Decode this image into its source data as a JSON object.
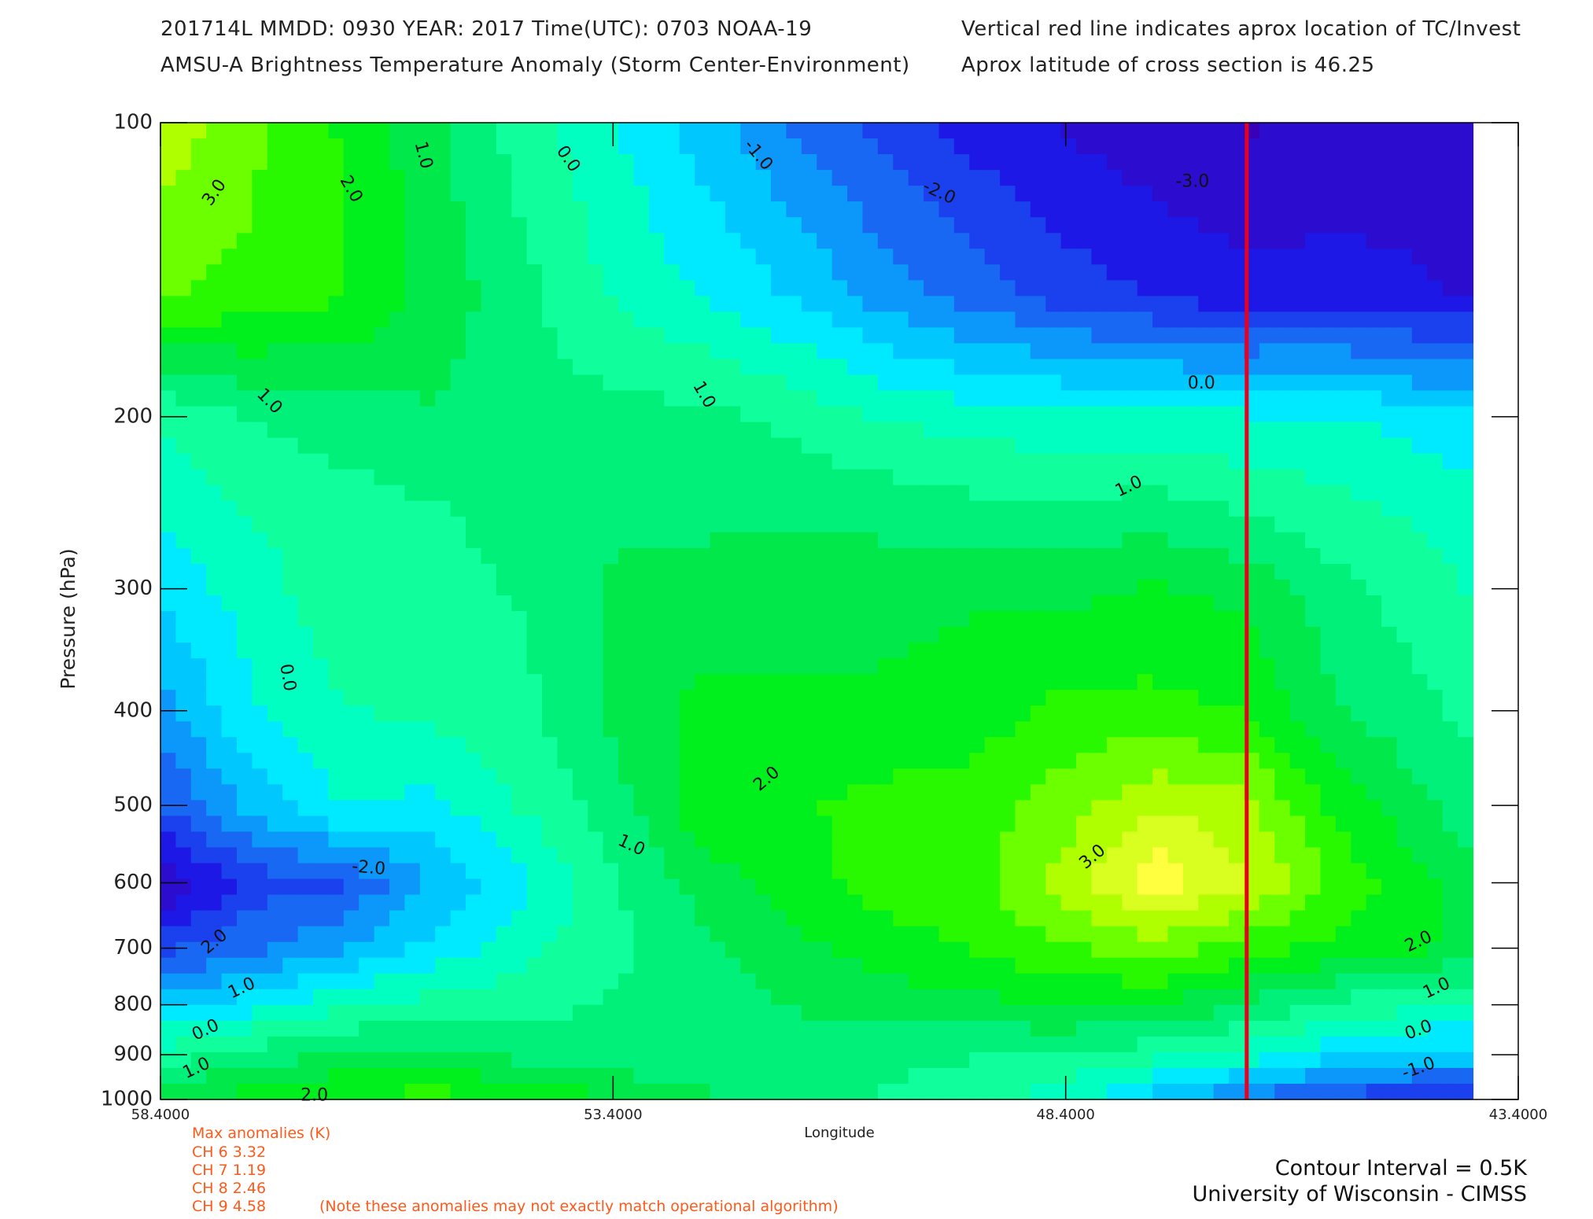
{
  "header": {
    "line1_left": "201714L  MMDD: 0930 YEAR: 2017 Time(UTC): 0703 NOAA-19",
    "line2_left": "AMSU-A Brightness Temperature Anomaly (Storm Center-Environment)",
    "line1_right": "Vertical red line indicates aprox location of TC/Invest",
    "line2_right": "Aprox latitude of cross section is 46.25"
  },
  "chart_data": {
    "type": "contour",
    "xlabel": "Longitude",
    "ylabel": "Pressure (hPa)",
    "x_range": [
      58.4,
      43.4
    ],
    "x_ticks": [
      58.4,
      53.4,
      48.4,
      43.4
    ],
    "x_tick_labels": [
      "58.4000",
      "53.4000",
      "48.4000",
      "43.4000"
    ],
    "y_ticks": [
      100,
      200,
      300,
      400,
      500,
      600,
      700,
      800,
      900,
      1000
    ],
    "y_scale": "log",
    "y_range": [
      100,
      1000
    ],
    "data_extent_lon": [
      58.4,
      43.9
    ],
    "contour_interval": 0.5,
    "tc_longitude": 46.4,
    "tc_line_color": "#e8001c",
    "color_scale": [
      {
        "v": -4.0,
        "c": "#3a00b8"
      },
      {
        "v": -3.0,
        "c": "#1d18e6"
      },
      {
        "v": -2.0,
        "c": "#1868f4"
      },
      {
        "v": -1.0,
        "c": "#00c8ff"
      },
      {
        "v": -0.5,
        "c": "#00eaff"
      },
      {
        "v": 0.0,
        "c": "#00ffc0"
      },
      {
        "v": 0.5,
        "c": "#10ff9c"
      },
      {
        "v": 1.0,
        "c": "#00f07a"
      },
      {
        "v": 1.5,
        "c": "#00e84a"
      },
      {
        "v": 2.0,
        "c": "#00f01e"
      },
      {
        "v": 2.5,
        "c": "#28f800"
      },
      {
        "v": 3.0,
        "c": "#6cff00"
      },
      {
        "v": 3.5,
        "c": "#b0ff00"
      },
      {
        "v": 4.5,
        "c": "#ffff40"
      }
    ],
    "grid": {
      "longitudes": [
        58.4,
        57.4,
        56.4,
        55.4,
        54.4,
        53.4,
        52.4,
        51.4,
        50.4,
        49.4,
        48.4,
        47.4,
        46.4,
        45.4,
        43.9
      ],
      "pressures": [
        100,
        150,
        200,
        250,
        300,
        400,
        500,
        600,
        700,
        800,
        900,
        1000
      ],
      "values": [
        [
          3.6,
          2.9,
          2.2,
          1.4,
          0.5,
          -0.2,
          -1.0,
          -1.8,
          -2.4,
          -3.0,
          -3.3,
          -3.6,
          -3.8,
          -3.7,
          -3.5
        ],
        [
          2.8,
          2.6,
          2.3,
          1.6,
          0.9,
          0.2,
          -0.3,
          -0.8,
          -1.5,
          -2.0,
          -2.5,
          -2.8,
          -3.1,
          -3.0,
          -3.3
        ],
        [
          0.3,
          0.8,
          1.0,
          1.2,
          1.0,
          0.9,
          0.9,
          0.6,
          0.2,
          0.0,
          -0.1,
          -0.1,
          -0.2,
          -0.2,
          -0.7
        ],
        [
          -0.2,
          0.3,
          0.5,
          0.7,
          0.9,
          1.2,
          1.1,
          1.1,
          1.1,
          0.9,
          0.9,
          1.0,
          0.7,
          0.4,
          0.0
        ],
        [
          -0.6,
          0.0,
          0.6,
          0.6,
          0.8,
          1.3,
          1.5,
          1.6,
          1.5,
          1.7,
          1.6,
          1.8,
          1.6,
          0.9,
          0.2
        ],
        [
          -1.5,
          -0.3,
          0.2,
          0.4,
          0.6,
          1.4,
          1.9,
          1.8,
          1.9,
          2.0,
          2.4,
          2.4,
          2.2,
          1.3,
          0.6
        ],
        [
          -2.3,
          -1.1,
          -0.2,
          -0.4,
          0.3,
          1.0,
          2.1,
          2.2,
          2.4,
          2.5,
          3.0,
          3.7,
          3.4,
          2.1,
          0.9
        ],
        [
          -3.8,
          -2.5,
          -2.3,
          -1.2,
          -0.4,
          0.7,
          1.5,
          2.0,
          2.5,
          2.6,
          3.5,
          4.6,
          3.8,
          2.6,
          1.5
        ],
        [
          -2.4,
          -1.9,
          -1.3,
          -0.6,
          0.1,
          0.6,
          1.1,
          1.6,
          2.0,
          2.3,
          2.7,
          3.0,
          2.5,
          2.1,
          1.6
        ],
        [
          -1.0,
          -0.5,
          0.2,
          0.4,
          0.6,
          0.8,
          1.0,
          1.3,
          1.5,
          1.6,
          1.8,
          1.8,
          1.2,
          0.6,
          0.2
        ],
        [
          0.5,
          1.0,
          1.3,
          1.4,
          1.1,
          0.9,
          0.8,
          0.9,
          0.9,
          0.8,
          0.7,
          0.4,
          0.0,
          -0.6,
          -1.0
        ],
        [
          1.5,
          2.0,
          2.3,
          2.5,
          2.2,
          1.8,
          1.4,
          1.0,
          0.7,
          0.4,
          0.0,
          -1.0,
          -1.8,
          -2.5,
          -3.0
        ]
      ]
    },
    "contour_labels": [
      {
        "text": "3.0",
        "lon": 57.8,
        "p": 118,
        "angle": -55
      },
      {
        "text": "2.0",
        "lon": 56.3,
        "p": 117,
        "angle": 60
      },
      {
        "text": "1.0",
        "lon": 55.5,
        "p": 108,
        "angle": 75
      },
      {
        "text": "0.0",
        "lon": 53.9,
        "p": 109,
        "angle": 55
      },
      {
        "text": "-1.0",
        "lon": 51.8,
        "p": 108,
        "angle": 50
      },
      {
        "text": "-2.0",
        "lon": 49.8,
        "p": 118,
        "angle": 25
      },
      {
        "text": "-3.0",
        "lon": 47.0,
        "p": 115,
        "angle": 0
      },
      {
        "text": "0.0",
        "lon": 46.9,
        "p": 185,
        "angle": 0
      },
      {
        "text": "1.0",
        "lon": 47.7,
        "p": 236,
        "angle": -25
      },
      {
        "text": "1.0",
        "lon": 57.2,
        "p": 193,
        "angle": 45
      },
      {
        "text": "1.0",
        "lon": 52.4,
        "p": 190,
        "angle": 60
      },
      {
        "text": "0.0",
        "lon": 57.0,
        "p": 370,
        "angle": 80
      },
      {
        "text": "2.0",
        "lon": 51.7,
        "p": 470,
        "angle": -40
      },
      {
        "text": "1.0",
        "lon": 53.2,
        "p": 550,
        "angle": 25
      },
      {
        "text": "-2.0",
        "lon": 56.1,
        "p": 580,
        "angle": 5
      },
      {
        "text": "3.0",
        "lon": 48.1,
        "p": 565,
        "angle": -40
      },
      {
        "text": "2.0",
        "lon": 57.8,
        "p": 690,
        "angle": -40
      },
      {
        "text": "1.0",
        "lon": 57.5,
        "p": 770,
        "angle": -25
      },
      {
        "text": "0.0",
        "lon": 57.9,
        "p": 850,
        "angle": -25
      },
      {
        "text": "1.0",
        "lon": 58.0,
        "p": 930,
        "angle": -25
      },
      {
        "text": "2.0",
        "lon": 56.7,
        "p": 992,
        "angle": 0
      },
      {
        "text": "2.0",
        "lon": 44.5,
        "p": 690,
        "angle": -25
      },
      {
        "text": "1.0",
        "lon": 44.3,
        "p": 770,
        "angle": -25
      },
      {
        "text": "0.0",
        "lon": 44.5,
        "p": 850,
        "angle": -20
      },
      {
        "text": "-1.0",
        "lon": 44.5,
        "p": 930,
        "angle": -20
      }
    ]
  },
  "anomalies": {
    "title": "Max anomalies (K)",
    "rows": [
      {
        "label": "CH 6  3.32"
      },
      {
        "label": "CH 7  1.19"
      },
      {
        "label": "CH 8  2.46"
      },
      {
        "label": "CH 9  4.58"
      }
    ],
    "note": "(Note these anomalies may not exactly match operational algorithm)",
    "color": "#ff5a1a"
  },
  "footer": {
    "contour_interval": "Contour Interval = 0.5K",
    "credit": "University of Wisconsin - CIMSS"
  }
}
